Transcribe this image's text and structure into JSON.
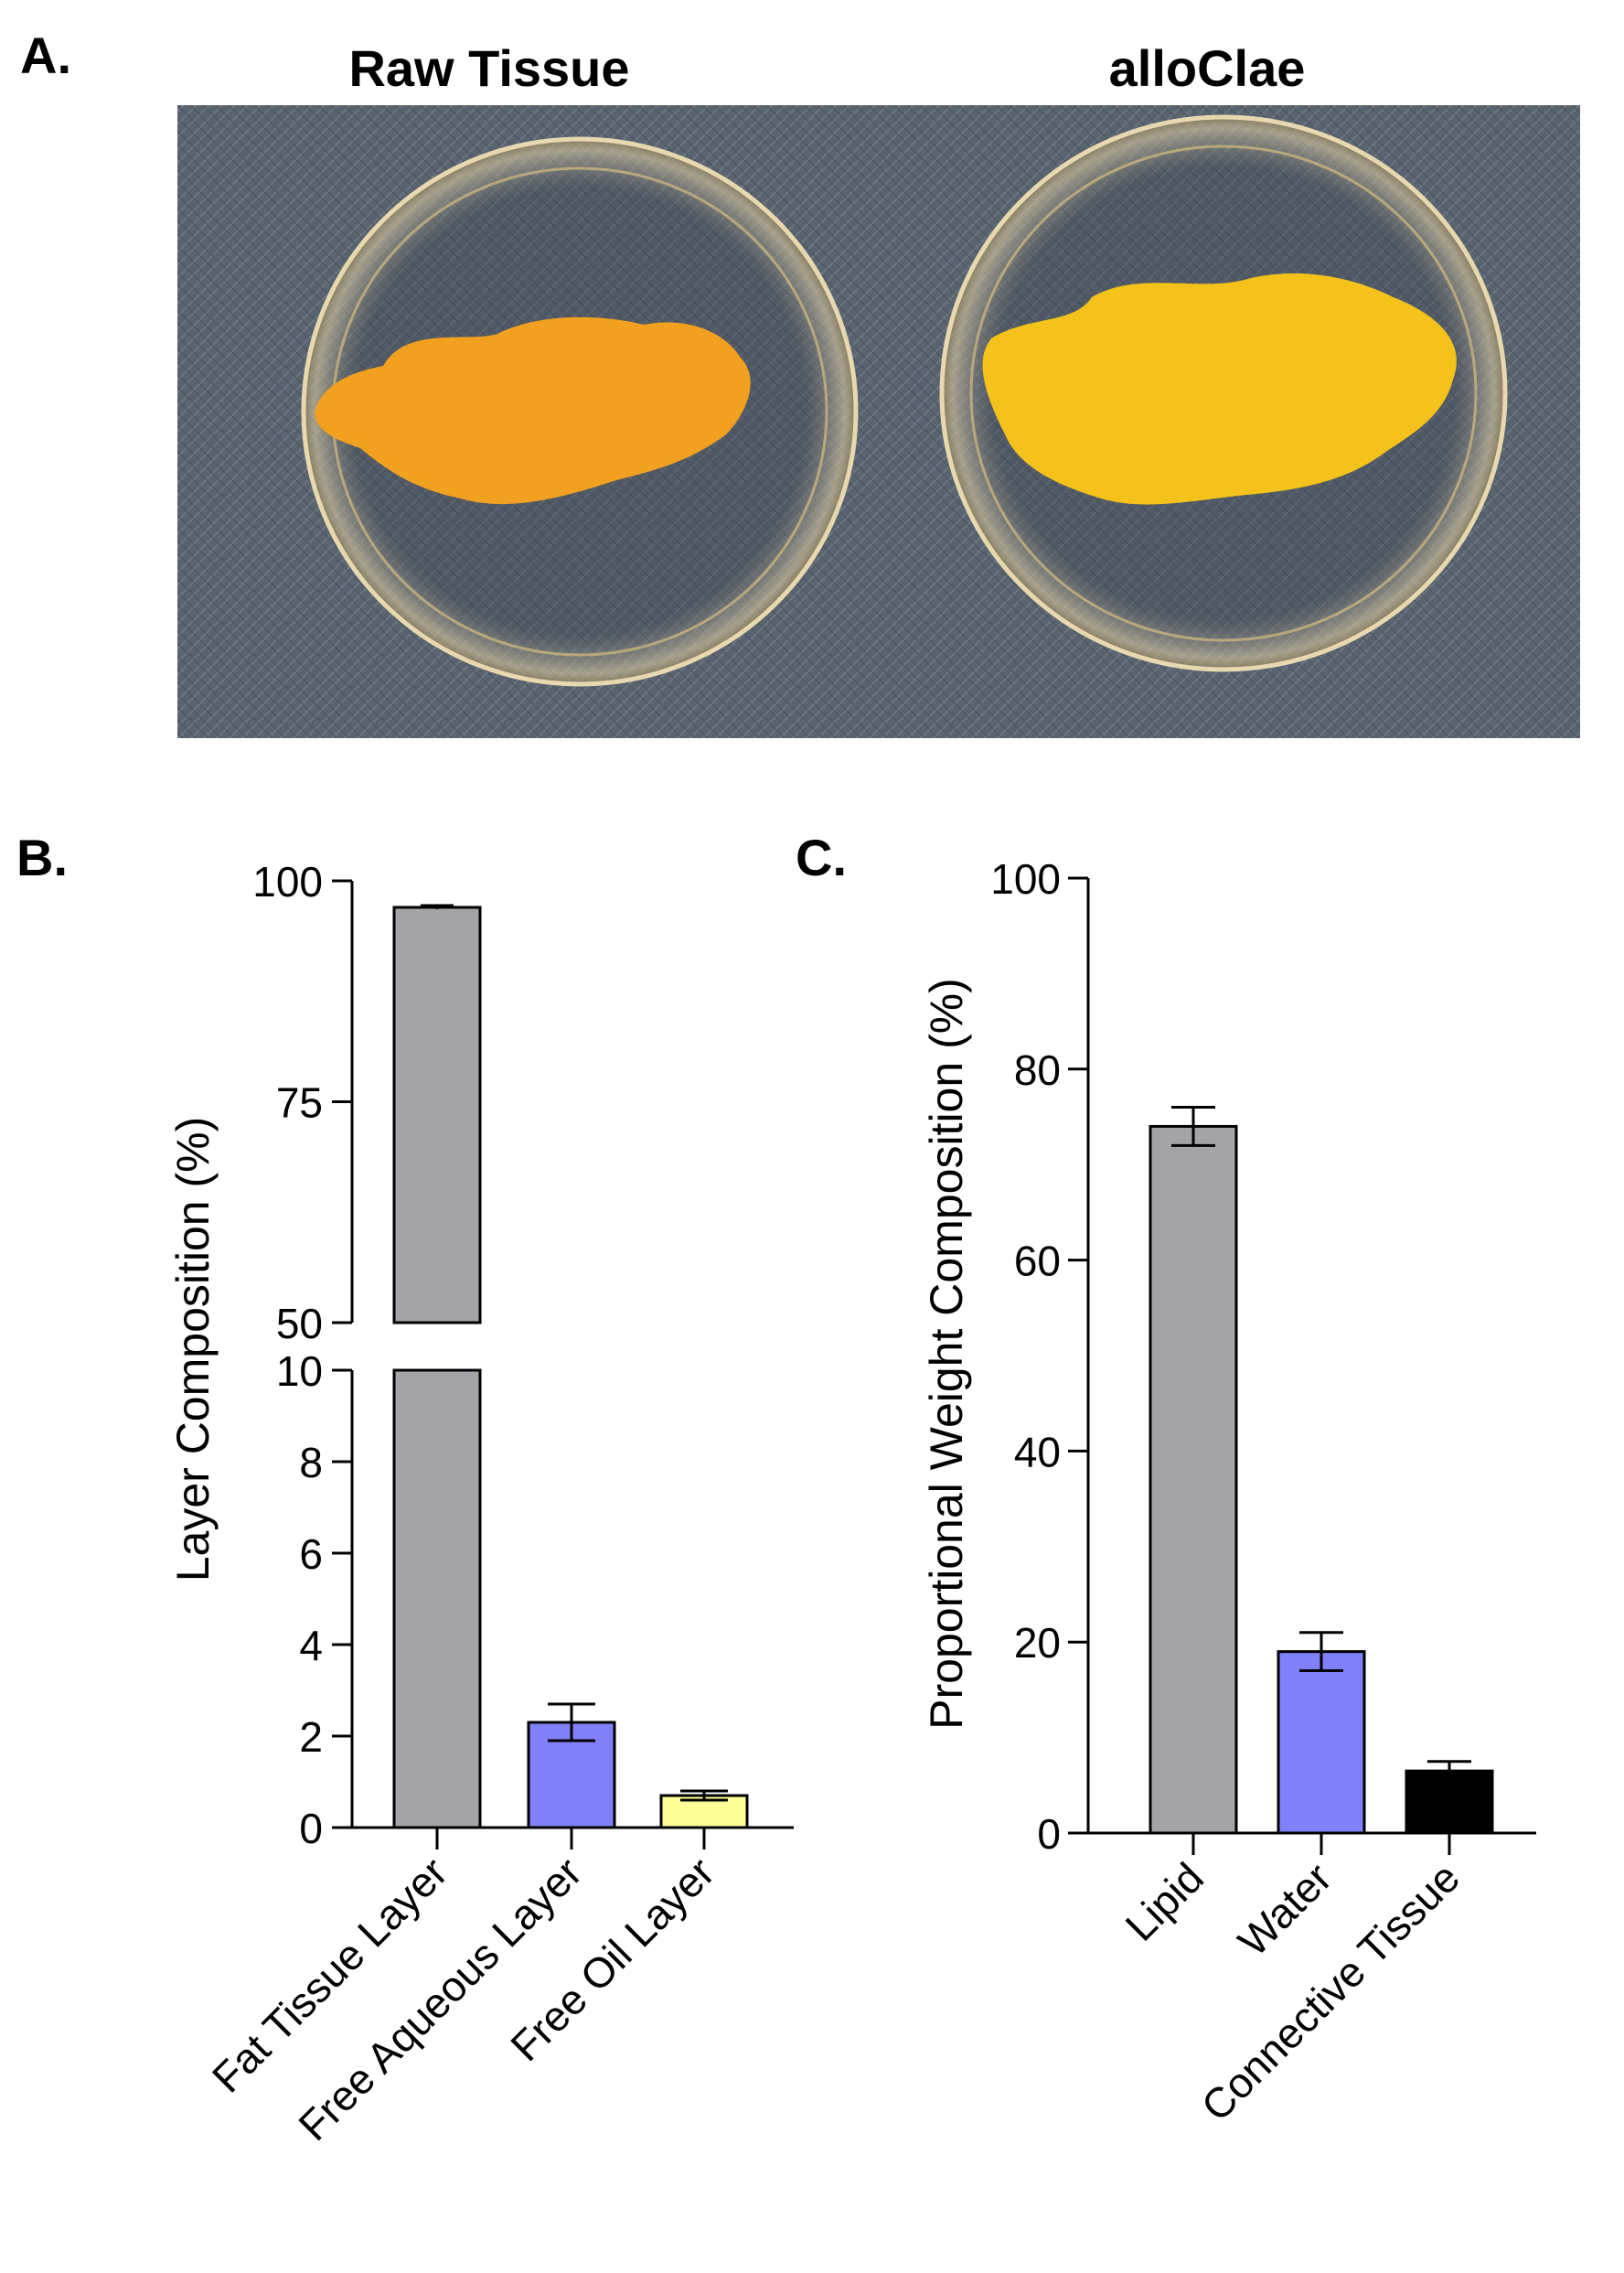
{
  "panels": {
    "a": {
      "letter": "A."
    },
    "b": {
      "letter": "B."
    },
    "c": {
      "letter": "C."
    }
  },
  "photo": {
    "left_label": "Raw Tissue",
    "right_label": "alloClae",
    "colors": {
      "background": "#5a6470",
      "raw_tissue": "#f2a020",
      "alloclae": "#f4c21a"
    }
  },
  "chart_data": [
    {
      "type": "bar",
      "title": "",
      "ylabel": "Layer Composition (%)",
      "xlabel": "",
      "categories": [
        "Fat Tissue Layer",
        "Free Aqueous Layer",
        "Free Oil Layer"
      ],
      "values": [
        97,
        2.3,
        0.7
      ],
      "errors": [
        0.2,
        0.4,
        0.1
      ],
      "colors": [
        "#a3a3a8",
        "#8080f8",
        "#ffff99"
      ],
      "broken_axis": true,
      "ylim_lower": [
        0,
        10
      ],
      "ylim_upper": [
        50,
        100
      ],
      "yticks_lower": [
        "0",
        "2",
        "4",
        "6",
        "8",
        "10"
      ],
      "yticks_upper": [
        "50",
        "75",
        "100"
      ],
      "grid": false
    },
    {
      "type": "bar",
      "title": "",
      "ylabel": "Proportional Weight Composition (%)",
      "xlabel": "",
      "categories": [
        "Lipid",
        "Water",
        "Connective Tissue"
      ],
      "values": [
        74,
        19,
        6.5
      ],
      "errors": [
        2,
        2,
        1
      ],
      "colors": [
        "#a3a3a8",
        "#8080f8",
        "#000000"
      ],
      "ylim": [
        0,
        100
      ],
      "yticks": [
        "0",
        "20",
        "40",
        "60",
        "80",
        "100"
      ],
      "grid": false
    }
  ]
}
